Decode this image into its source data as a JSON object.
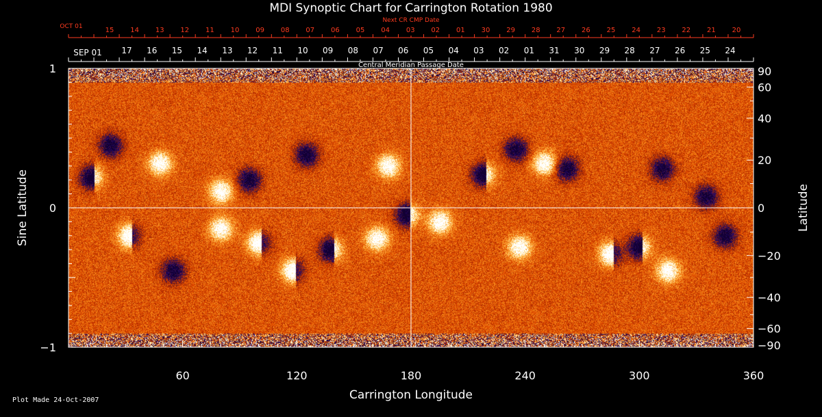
{
  "chart_data": {
    "type": "heatmap",
    "title": "MDI Synoptic Chart for Carrington Rotation 1980",
    "xlabel": "Carrington Longitude",
    "ylabel_left": "Sine Latitude",
    "ylabel_right": "Latitude",
    "xlim": [
      0,
      360
    ],
    "ylim": [
      -1,
      1
    ],
    "x_ticks": [
      60,
      120,
      180,
      240,
      300,
      360
    ],
    "y_left_ticks": [
      {
        "value": 1,
        "label": "1"
      },
      {
        "value": 0,
        "label": "0"
      },
      {
        "value": -1,
        "label": "−1"
      }
    ],
    "y_right_ticks": [
      {
        "deg": 90,
        "label": "90"
      },
      {
        "deg": 60,
        "label": "60"
      },
      {
        "deg": 40,
        "label": "40"
      },
      {
        "deg": 20,
        "label": "20"
      },
      {
        "deg": 0,
        "label": "0"
      },
      {
        "deg": -20,
        "label": "−20"
      },
      {
        "deg": -40,
        "label": "−40"
      },
      {
        "deg": -60,
        "label": "−60"
      },
      {
        "deg": -90,
        "label": "−90"
      }
    ],
    "top_axis_next": {
      "label": "Next CR CMP Date",
      "color": "#ff3b1f",
      "month_label": "OCT 01",
      "days": [
        "15",
        "14",
        "13",
        "12",
        "11",
        "10",
        "09",
        "08",
        "07",
        "06",
        "05",
        "04",
        "03",
        "02",
        "01",
        "30",
        "29",
        "28",
        "27",
        "26",
        "25",
        "24",
        "23",
        "22",
        "21",
        "20"
      ]
    },
    "top_axis_cmp": {
      "label": "Central Meridian Passage Date",
      "month_label": "SEP 01",
      "days": [
        "17",
        "16",
        "15",
        "14",
        "13",
        "12",
        "11",
        "10",
        "09",
        "08",
        "07",
        "06",
        "05",
        "04",
        "03",
        "02",
        "01",
        "31",
        "30",
        "29",
        "28",
        "27",
        "26",
        "25",
        "24"
      ]
    },
    "grid_lines": {
      "vertical_longitude": 180,
      "horizontal_sine_lat": 0
    },
    "colormap": [
      "#120033",
      "#2a0a6e",
      "#5a1a2a",
      "#b02a00",
      "#e04a00",
      "#f07a10",
      "#ffb040",
      "#ffe8a0",
      "#ffffff"
    ],
    "active_regions": [
      {
        "lon": 12,
        "sinlat": 0.22,
        "kind": "bipole-dark"
      },
      {
        "lon": 32,
        "sinlat": -0.2,
        "kind": "bipole-bright"
      },
      {
        "lon": 48,
        "sinlat": 0.32,
        "kind": "bright"
      },
      {
        "lon": 55,
        "sinlat": -0.45,
        "kind": "dark"
      },
      {
        "lon": 80,
        "sinlat": 0.12,
        "kind": "bright"
      },
      {
        "lon": 80,
        "sinlat": -0.15,
        "kind": "bright"
      },
      {
        "lon": 95,
        "sinlat": 0.2,
        "kind": "dark"
      },
      {
        "lon": 100,
        "sinlat": -0.25,
        "kind": "bipole-bright"
      },
      {
        "lon": 118,
        "sinlat": -0.45,
        "kind": "bipole-bright"
      },
      {
        "lon": 125,
        "sinlat": 0.38,
        "kind": "dark"
      },
      {
        "lon": 138,
        "sinlat": -0.3,
        "kind": "bipole-dark"
      },
      {
        "lon": 162,
        "sinlat": -0.22,
        "kind": "bright"
      },
      {
        "lon": 168,
        "sinlat": 0.3,
        "kind": "bright"
      },
      {
        "lon": 178,
        "sinlat": -0.05,
        "kind": "bipole-dark"
      },
      {
        "lon": 218,
        "sinlat": 0.24,
        "kind": "bipole-dark"
      },
      {
        "lon": 235,
        "sinlat": 0.42,
        "kind": "dark"
      },
      {
        "lon": 250,
        "sinlat": 0.32,
        "kind": "bright"
      },
      {
        "lon": 262,
        "sinlat": 0.28,
        "kind": "dark"
      },
      {
        "lon": 237,
        "sinlat": -0.28,
        "kind": "bright"
      },
      {
        "lon": 285,
        "sinlat": -0.33,
        "kind": "bipole-bright"
      },
      {
        "lon": 300,
        "sinlat": -0.28,
        "kind": "bipole-dark"
      },
      {
        "lon": 315,
        "sinlat": -0.45,
        "kind": "bright"
      },
      {
        "lon": 312,
        "sinlat": 0.28,
        "kind": "dark"
      },
      {
        "lon": 335,
        "sinlat": 0.08,
        "kind": "dark"
      },
      {
        "lon": 345,
        "sinlat": -0.2,
        "kind": "dark"
      },
      {
        "lon": 22,
        "sinlat": 0.45,
        "kind": "dark"
      },
      {
        "lon": 195,
        "sinlat": -0.1,
        "kind": "bright"
      }
    ]
  },
  "footer": {
    "plot_made": "Plot Made 24-Oct-2007"
  }
}
